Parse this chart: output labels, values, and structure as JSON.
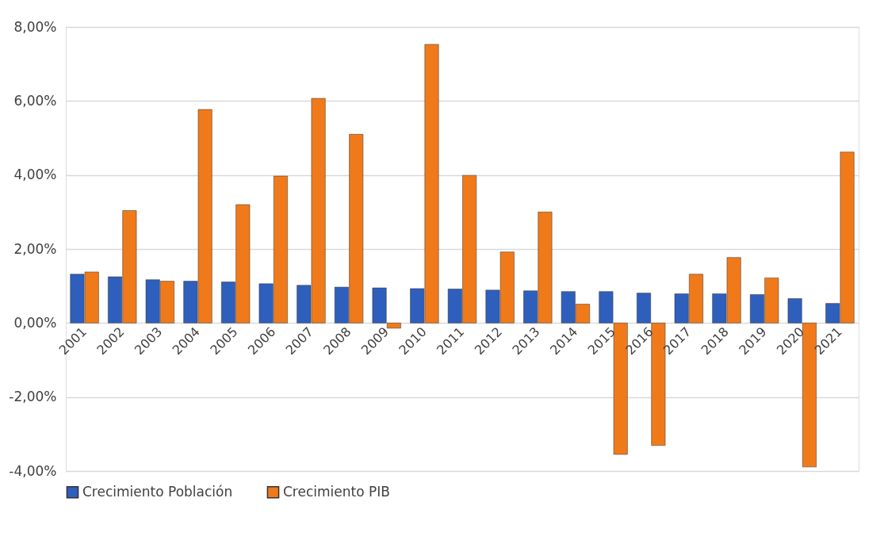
{
  "chart_data": {
    "type": "bar",
    "categories": [
      "2001",
      "2002",
      "2003",
      "2004",
      "2005",
      "2006",
      "2007",
      "2008",
      "2009",
      "2010",
      "2011",
      "2012",
      "2013",
      "2014",
      "2015",
      "2016",
      "2017",
      "2018",
      "2019",
      "2020",
      "2021"
    ],
    "series": [
      {
        "name": "Crecimiento Población",
        "color": "#2f5fbd",
        "values": [
          1.32,
          1.25,
          1.17,
          1.13,
          1.11,
          1.06,
          1.02,
          0.97,
          0.95,
          0.93,
          0.92,
          0.89,
          0.87,
          0.85,
          0.85,
          0.81,
          0.79,
          0.79,
          0.77,
          0.66,
          0.53
        ]
      },
      {
        "name": "Crecimiento PIB",
        "color": "#f07a1a",
        "values": [
          1.38,
          3.04,
          1.13,
          5.77,
          3.2,
          3.97,
          6.07,
          5.1,
          -0.14,
          7.53,
          3.99,
          1.92,
          3.0,
          0.51,
          -3.55,
          -3.31,
          1.32,
          1.77,
          1.22,
          -3.89,
          4.62
        ]
      }
    ],
    "ylim": [
      -4,
      8
    ],
    "yticks": [
      {
        "value": -4,
        "label": "-4,00%"
      },
      {
        "value": -2,
        "label": "-2,00%"
      },
      {
        "value": 0,
        "label": "0,00%"
      },
      {
        "value": 2,
        "label": "2,00%"
      },
      {
        "value": 4,
        "label": "4,00%"
      },
      {
        "value": 6,
        "label": "6,00%"
      },
      {
        "value": 8,
        "label": "8,00%"
      }
    ],
    "grid": "y",
    "legend": "bottom"
  }
}
